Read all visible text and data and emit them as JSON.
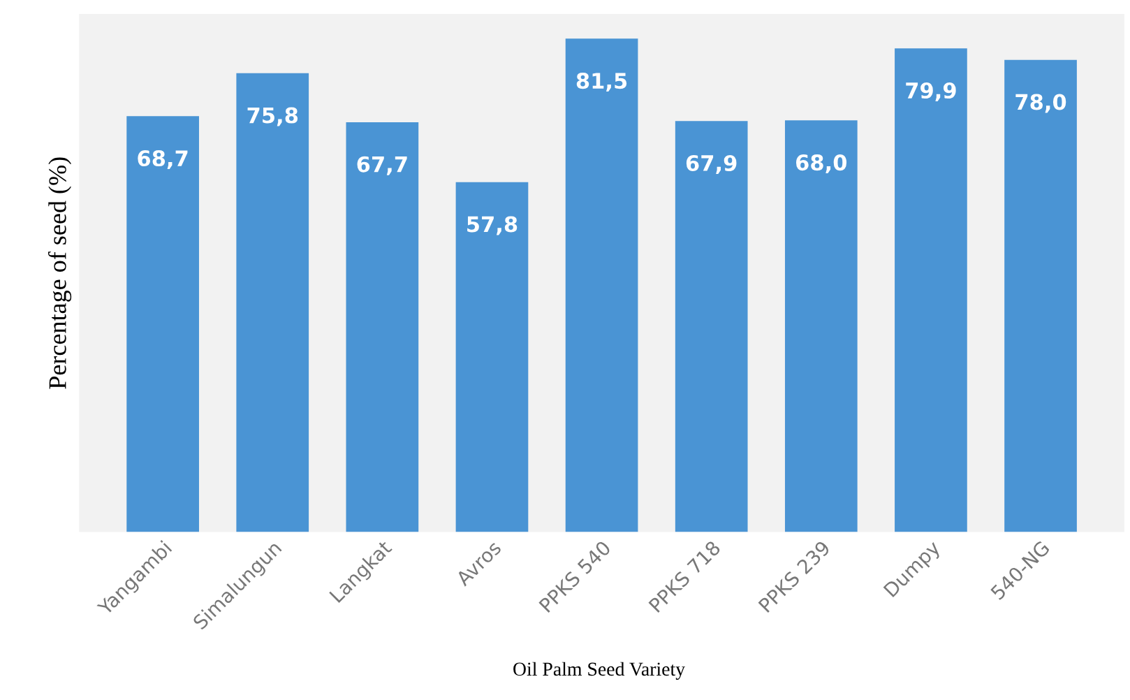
{
  "chart_data": {
    "type": "bar",
    "xlabel": "Oil Palm Seed Variety",
    "ylabel": "Percentage of seed (%)",
    "categories": [
      "Yangambi",
      "Simalungun",
      "Langkat",
      "Avros",
      "PPKS 540",
      "PPKS 718",
      "PPKS 239",
      "Dumpy",
      "540-NG"
    ],
    "values": [
      68.7,
      75.8,
      67.7,
      57.8,
      81.5,
      67.9,
      68.0,
      79.9,
      78.0
    ],
    "value_labels": [
      "68,7",
      "75,8",
      "67,7",
      "57,8",
      "81,5",
      "67,9",
      "68,0",
      "79,9",
      "78,0"
    ],
    "color": "#4a94d4",
    "tick_labels": "x",
    "grid": false,
    "legend": false
  }
}
